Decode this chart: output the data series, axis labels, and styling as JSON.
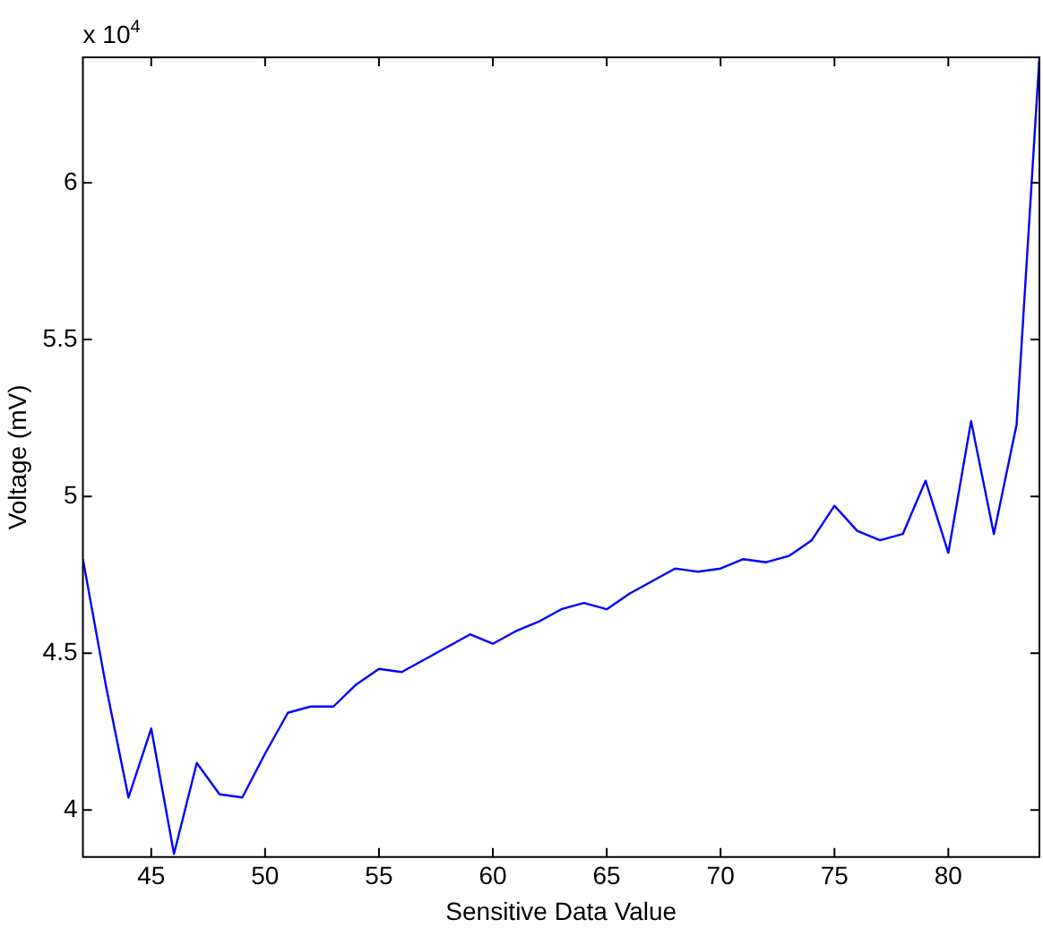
{
  "chart_data": {
    "type": "line",
    "xlabel": "Sensitive Data Value",
    "ylabel": "Voltage (mV)",
    "annotations": [
      "x 10$^{4}$"
    ],
    "x": [
      42,
      43,
      44,
      45,
      46,
      47,
      48,
      49,
      50,
      51,
      52,
      53,
      54,
      55,
      56,
      57,
      58,
      59,
      60,
      61,
      62,
      63,
      64,
      65,
      66,
      67,
      68,
      69,
      70,
      71,
      72,
      73,
      74,
      75,
      76,
      77,
      78,
      79,
      80,
      81,
      82,
      83,
      84
    ],
    "series": [
      {
        "color": "#0000ff",
        "values": [
          4.8,
          4.4,
          4.04,
          4.26,
          3.86,
          4.15,
          4.05,
          4.04,
          4.18,
          4.31,
          4.33,
          4.33,
          4.4,
          4.45,
          4.44,
          4.48,
          4.52,
          4.56,
          4.53,
          4.57,
          4.6,
          4.64,
          4.66,
          4.64,
          4.69,
          4.73,
          4.77,
          4.76,
          4.77,
          4.8,
          4.79,
          4.81,
          4.86,
          4.97,
          4.89,
          4.86,
          4.88,
          5.05,
          4.82,
          5.24,
          4.88,
          5.23,
          6.4
        ]
      }
    ],
    "xlim": [
      42,
      84
    ],
    "xticks": [
      45,
      50,
      55,
      60,
      65,
      70,
      75,
      80
    ],
    "ylim": [
      3.85,
      6.4
    ],
    "yticks": [
      4,
      4.5,
      5,
      5.5,
      6
    ],
    "grid": false,
    "legend": false,
    "marker": "none",
    "line_style": "solid"
  }
}
